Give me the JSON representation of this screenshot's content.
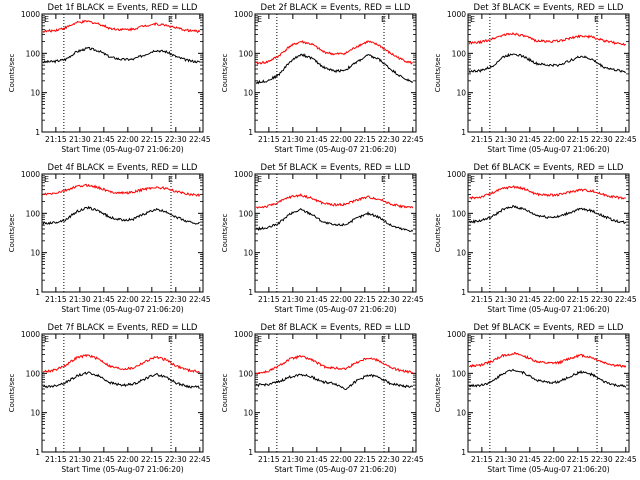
{
  "colors": {
    "events": "#000000",
    "lld": "#ff0000",
    "axes": "#000000",
    "background": "#ffffff"
  },
  "chart_data": [
    {
      "type": "line",
      "title": "Det 1f BLACK = Events, RED = LLD",
      "xlabel": "Start Time (05-Aug-07 21:06:20)",
      "ylabel": "Counts/sec",
      "yscale": "log",
      "ylim": [
        1,
        1000
      ],
      "yticks": [
        "1",
        "10",
        "100",
        "1000"
      ],
      "xticks": [
        "21:15",
        "21:30",
        "21:45",
        "22:00",
        "22:15",
        "22:30",
        "22:45"
      ],
      "xlim": [
        "21:06:20",
        "22:47:00"
      ],
      "marker_lines": [
        "21:20",
        "22:27"
      ],
      "corner_label": "E",
      "grid": false,
      "x": [
        "21:07",
        "21:14",
        "21:21",
        "21:28",
        "21:35",
        "21:42",
        "21:49",
        "21:56",
        "22:03",
        "22:10",
        "22:17",
        "22:24",
        "22:31",
        "22:38",
        "22:45"
      ],
      "series": [
        {
          "name": "BLACK = Events",
          "color": "#000000",
          "values": [
            60,
            62,
            70,
            110,
            135,
            115,
            80,
            70,
            70,
            90,
            120,
            110,
            80,
            65,
            60
          ]
        },
        {
          "name": "RED = LLD",
          "color": "#ff0000",
          "values": [
            360,
            380,
            450,
            600,
            650,
            560,
            430,
            400,
            410,
            500,
            560,
            520,
            430,
            380,
            360
          ]
        }
      ]
    },
    {
      "type": "line",
      "title": "Det 2f BLACK = Events, RED = LLD",
      "xlabel": "Start Time (05-Aug-07 21:06:20)",
      "ylabel": "Counts/sec",
      "yscale": "log",
      "ylim": [
        1,
        1000
      ],
      "yticks": [
        "1",
        "10",
        "100",
        "1000"
      ],
      "xticks": [
        "21:15",
        "21:30",
        "21:45",
        "22:00",
        "22:15",
        "22:30",
        "22:45"
      ],
      "xlim": [
        "21:06:20",
        "22:47:00"
      ],
      "marker_lines": [
        "21:20",
        "22:27"
      ],
      "corner_label": "E",
      "grid": false,
      "x": [
        "21:07",
        "21:14",
        "21:21",
        "21:28",
        "21:35",
        "21:42",
        "21:49",
        "21:56",
        "22:03",
        "22:10",
        "22:17",
        "22:24",
        "22:31",
        "22:38",
        "22:45"
      ],
      "series": [
        {
          "name": "BLACK = Events",
          "color": "#000000",
          "values": [
            18,
            20,
            28,
            60,
            95,
            75,
            45,
            35,
            38,
            60,
            90,
            70,
            40,
            25,
            18
          ]
        },
        {
          "name": "RED = LLD",
          "color": "#ff0000",
          "values": [
            55,
            60,
            85,
            150,
            200,
            170,
            110,
            95,
            100,
            150,
            200,
            160,
            100,
            70,
            55
          ]
        }
      ]
    },
    {
      "type": "line",
      "title": "Det 3f BLACK = Events, RED = LLD",
      "xlabel": "Start Time (05-Aug-07 21:06:20)",
      "ylabel": "Counts/sec",
      "yscale": "log",
      "ylim": [
        1,
        1000
      ],
      "yticks": [
        "1",
        "10",
        "100",
        "1000"
      ],
      "xticks": [
        "21:15",
        "21:30",
        "21:45",
        "22:00",
        "22:15",
        "22:30",
        "22:45"
      ],
      "xlim": [
        "21:06:20",
        "22:47:00"
      ],
      "marker_lines": [
        "21:20",
        "22:27"
      ],
      "corner_label": "E",
      "grid": false,
      "x": [
        "21:07",
        "21:14",
        "21:21",
        "21:28",
        "21:35",
        "21:42",
        "21:49",
        "21:56",
        "22:03",
        "22:10",
        "22:17",
        "22:24",
        "22:31",
        "22:38",
        "22:45"
      ],
      "series": [
        {
          "name": "BLACK = Events",
          "color": "#000000",
          "values": [
            35,
            36,
            45,
            80,
            100,
            80,
            55,
            50,
            50,
            65,
            85,
            70,
            45,
            38,
            34
          ]
        },
        {
          "name": "RED = LLD",
          "color": "#ff0000",
          "values": [
            180,
            190,
            230,
            290,
            320,
            270,
            210,
            200,
            205,
            240,
            280,
            260,
            210,
            185,
            170
          ]
        }
      ]
    },
    {
      "type": "line",
      "title": "Det 4f BLACK = Events, RED = LLD",
      "xlabel": "Start Time (05-Aug-07 21:06:20)",
      "ylabel": "Counts/sec",
      "yscale": "log",
      "ylim": [
        1,
        1000
      ],
      "yticks": [
        "1",
        "10",
        "100",
        "1000"
      ],
      "xticks": [
        "21:15",
        "21:30",
        "21:45",
        "22:00",
        "22:15",
        "22:30",
        "22:45"
      ],
      "xlim": [
        "21:06:20",
        "22:47:00"
      ],
      "marker_lines": [
        "21:20",
        "22:27"
      ],
      "corner_label": "E",
      "grid": false,
      "x": [
        "21:07",
        "21:14",
        "21:21",
        "21:28",
        "21:35",
        "21:42",
        "21:49",
        "21:56",
        "22:03",
        "22:10",
        "22:17",
        "22:24",
        "22:31",
        "22:38",
        "22:45"
      ],
      "series": [
        {
          "name": "BLACK = Events",
          "color": "#000000",
          "values": [
            55,
            58,
            68,
            110,
            140,
            115,
            78,
            68,
            70,
            95,
            125,
            110,
            78,
            60,
            55
          ]
        },
        {
          "name": "RED = LLD",
          "color": "#ff0000",
          "values": [
            300,
            320,
            380,
            480,
            520,
            450,
            350,
            330,
            340,
            410,
            460,
            430,
            350,
            310,
            290
          ]
        }
      ]
    },
    {
      "type": "line",
      "title": "Det 5f BLACK = Events, RED = LLD",
      "xlabel": "Start Time (05-Aug-07 21:06:20)",
      "ylabel": "Counts/sec",
      "yscale": "log",
      "ylim": [
        1,
        1000
      ],
      "yticks": [
        "1",
        "10",
        "100",
        "1000"
      ],
      "xticks": [
        "21:15",
        "21:30",
        "21:45",
        "22:00",
        "22:15",
        "22:30",
        "22:45"
      ],
      "xlim": [
        "21:06:20",
        "22:47:00"
      ],
      "marker_lines": [
        "21:20",
        "22:27"
      ],
      "corner_label": "E",
      "grid": false,
      "x": [
        "21:07",
        "21:14",
        "21:21",
        "21:28",
        "21:35",
        "21:42",
        "21:49",
        "21:56",
        "22:03",
        "22:10",
        "22:17",
        "22:24",
        "22:31",
        "22:38",
        "22:45"
      ],
      "series": [
        {
          "name": "BLACK = Events",
          "color": "#000000",
          "values": [
            40,
            42,
            55,
            95,
            125,
            95,
            60,
            50,
            52,
            75,
            100,
            80,
            50,
            40,
            36
          ]
        },
        {
          "name": "RED = LLD",
          "color": "#ff0000",
          "values": [
            140,
            150,
            190,
            260,
            290,
            240,
            180,
            165,
            170,
            220,
            260,
            230,
            175,
            150,
            140
          ]
        }
      ]
    },
    {
      "type": "line",
      "title": "Det 6f BLACK = Events, RED = LLD",
      "xlabel": "Start Time (05-Aug-07 21:06:20)",
      "ylabel": "Counts/sec",
      "yscale": "log",
      "ylim": [
        1,
        1000
      ],
      "yticks": [
        "1",
        "10",
        "100",
        "1000"
      ],
      "xticks": [
        "21:15",
        "21:30",
        "21:45",
        "22:00",
        "22:15",
        "22:30",
        "22:45"
      ],
      "xlim": [
        "21:06:20",
        "22:47:00"
      ],
      "marker_lines": [
        "21:20",
        "22:27"
      ],
      "corner_label": "E",
      "grid": false,
      "x": [
        "21:07",
        "21:14",
        "21:21",
        "21:28",
        "21:35",
        "21:42",
        "21:49",
        "21:56",
        "22:03",
        "22:10",
        "22:17",
        "22:24",
        "22:31",
        "22:38",
        "22:45"
      ],
      "series": [
        {
          "name": "BLACK = Events",
          "color": "#000000",
          "values": [
            60,
            65,
            80,
            125,
            150,
            125,
            90,
            80,
            82,
            105,
            130,
            115,
            85,
            65,
            58
          ]
        },
        {
          "name": "RED = LLD",
          "color": "#ff0000",
          "values": [
            240,
            260,
            320,
            430,
            480,
            410,
            310,
            290,
            295,
            350,
            400,
            370,
            300,
            260,
            240
          ]
        }
      ]
    },
    {
      "type": "line",
      "title": "Det 7f BLACK = Events, RED = LLD",
      "xlabel": "Start Time (05-Aug-07 21:06:20)",
      "ylabel": "Counts/sec",
      "yscale": "log",
      "ylim": [
        1,
        1000
      ],
      "yticks": [
        "1",
        "10",
        "100",
        "1000"
      ],
      "xticks": [
        "21:15",
        "21:30",
        "21:45",
        "22:00",
        "22:15",
        "22:30",
        "22:45"
      ],
      "xlim": [
        "21:06:20",
        "22:47:00"
      ],
      "marker_lines": [
        "21:20",
        "22:27"
      ],
      "corner_label": "E",
      "grid": false,
      "x": [
        "21:07",
        "21:14",
        "21:21",
        "21:28",
        "21:35",
        "21:42",
        "21:49",
        "21:56",
        "22:03",
        "22:10",
        "22:17",
        "22:24",
        "22:31",
        "22:38",
        "22:45"
      ],
      "series": [
        {
          "name": "BLACK = Events",
          "color": "#000000",
          "values": [
            45,
            48,
            58,
            85,
            105,
            85,
            58,
            50,
            52,
            70,
            95,
            80,
            55,
            46,
            44
          ]
        },
        {
          "name": "RED = LLD",
          "color": "#ff0000",
          "values": [
            110,
            120,
            160,
            250,
            290,
            230,
            150,
            130,
            135,
            190,
            260,
            220,
            150,
            120,
            110
          ]
        }
      ]
    },
    {
      "type": "line",
      "title": "Det 8f BLACK = Events, RED = LLD",
      "xlabel": "Start Time (05-Aug-07 21:06:20)",
      "ylabel": "Counts/sec",
      "yscale": "log",
      "ylim": [
        1,
        1000
      ],
      "yticks": [
        "1",
        "10",
        "100",
        "1000"
      ],
      "xticks": [
        "21:15",
        "21:30",
        "21:45",
        "22:00",
        "22:15",
        "22:30",
        "22:45"
      ],
      "xlim": [
        "21:06:20",
        "22:47:00"
      ],
      "marker_lines": [
        "21:20",
        "22:27"
      ],
      "corner_label": "E",
      "grid": false,
      "x": [
        "21:07",
        "21:14",
        "21:21",
        "21:28",
        "21:35",
        "21:42",
        "21:49",
        "21:56",
        "22:03",
        "22:10",
        "22:17",
        "22:24",
        "22:31",
        "22:38",
        "22:45"
      ],
      "series": [
        {
          "name": "BLACK = Events",
          "color": "#000000",
          "values": [
            50,
            52,
            60,
            80,
            95,
            80,
            60,
            55,
            40,
            65,
            90,
            80,
            55,
            48,
            45
          ]
        },
        {
          "name": "RED = LLD",
          "color": "#ff0000",
          "values": [
            100,
            110,
            150,
            230,
            270,
            220,
            150,
            135,
            130,
            190,
            250,
            210,
            140,
            115,
            105
          ]
        }
      ]
    },
    {
      "type": "line",
      "title": "Det 9f BLACK = Events, RED = LLD",
      "xlabel": "Start Time (05-Aug-07 21:06:20)",
      "ylabel": "Counts/sec",
      "yscale": "log",
      "ylim": [
        1,
        1000
      ],
      "yticks": [
        "1",
        "10",
        "100",
        "1000"
      ],
      "xticks": [
        "21:15",
        "21:30",
        "21:45",
        "22:00",
        "22:15",
        "22:30",
        "22:45"
      ],
      "xlim": [
        "21:06:20",
        "22:47:00"
      ],
      "marker_lines": [
        "21:20",
        "22:27"
      ],
      "corner_label": "E",
      "grid": false,
      "x": [
        "21:07",
        "21:14",
        "21:21",
        "21:28",
        "21:35",
        "21:42",
        "21:49",
        "21:56",
        "22:03",
        "22:10",
        "22:17",
        "22:24",
        "22:31",
        "22:38",
        "22:45"
      ],
      "series": [
        {
          "name": "BLACK = Events",
          "color": "#000000",
          "values": [
            48,
            50,
            60,
            100,
            125,
            100,
            68,
            58,
            60,
            82,
            110,
            92,
            62,
            50,
            46
          ]
        },
        {
          "name": "RED = LLD",
          "color": "#ff0000",
          "values": [
            150,
            160,
            200,
            280,
            320,
            270,
            200,
            180,
            185,
            240,
            290,
            250,
            190,
            160,
            150
          ]
        }
      ]
    }
  ]
}
